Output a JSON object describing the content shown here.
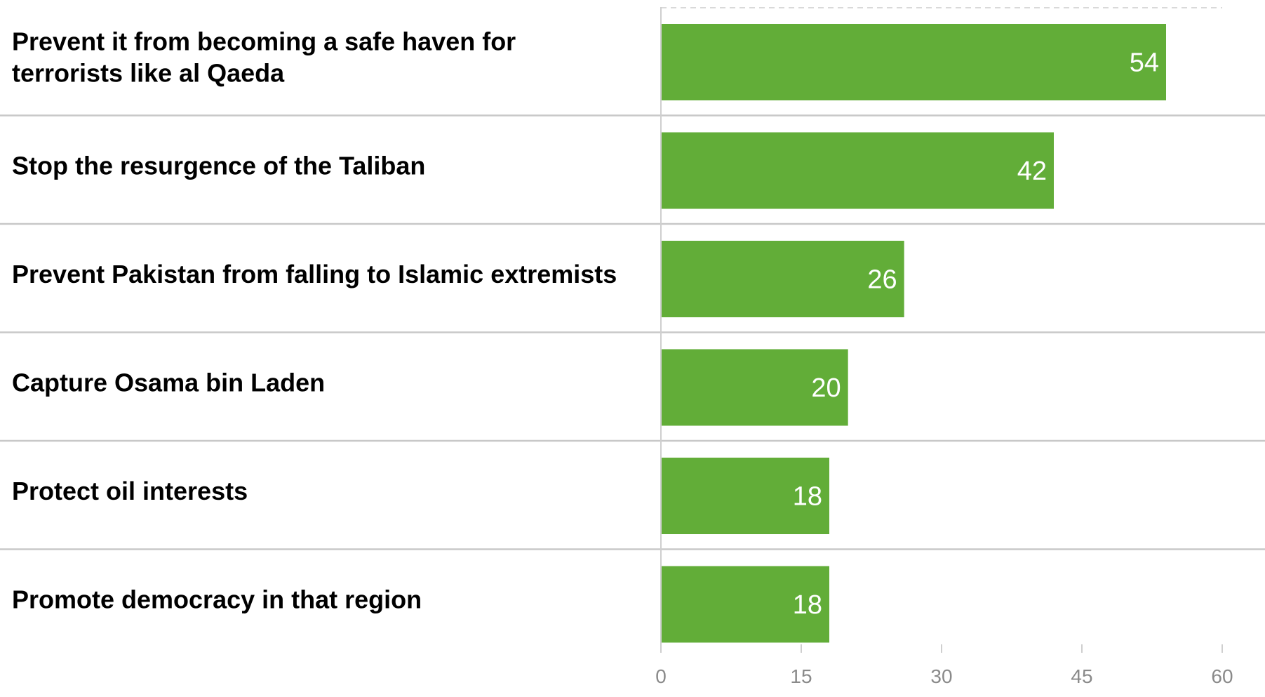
{
  "chart_data": {
    "type": "bar",
    "orientation": "horizontal",
    "categories": [
      [
        "Prevent it from becoming a safe haven for",
        "terrorists like al Qaeda"
      ],
      [
        "Stop the resurgence of the Taliban"
      ],
      [
        "Prevent Pakistan from falling to Islamic extremists"
      ],
      [
        "Capture Osama bin Laden"
      ],
      [
        "Protect oil interests"
      ],
      [
        "Promote democracy in that region"
      ]
    ],
    "values": [
      54,
      42,
      26,
      20,
      18,
      18
    ],
    "value_labels": [
      "54",
      "42",
      "26",
      "20",
      "18",
      "18"
    ],
    "x_ticks": [
      "0",
      "15",
      "30",
      "45",
      "60"
    ],
    "xlim": [
      0,
      60
    ],
    "bar_color": "#62ad38",
    "separator_color": "#c8c8c8",
    "grid": false,
    "legend": "none"
  }
}
